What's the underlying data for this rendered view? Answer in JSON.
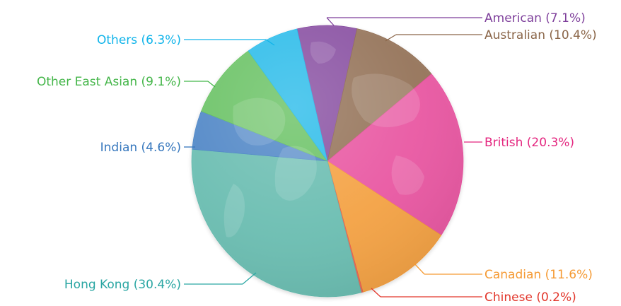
{
  "chart_data": {
    "type": "pie",
    "title": "",
    "slices": [
      {
        "label": "American (7.1%)",
        "value": 7.1,
        "color": "#7e3f9b"
      },
      {
        "label": "Australian (10.4%)",
        "value": 10.4,
        "color": "#8b6649"
      },
      {
        "label": "British (20.3%)",
        "value": 20.3,
        "color": "#e9489b"
      },
      {
        "label": "Canadian (11.6%)",
        "value": 11.6,
        "color": "#f59a33"
      },
      {
        "label": "Chinese (0.2%)",
        "value": 0.2,
        "color": "#e85b4a"
      },
      {
        "label": "Hong Kong (30.4%)",
        "value": 30.4,
        "color": "#5cb8ab"
      },
      {
        "label": "Indian (4.6%)",
        "value": 4.6,
        "color": "#3f7cc3"
      },
      {
        "label": "Other East Asian (9.1%)",
        "value": 9.1,
        "color": "#5cbe55"
      },
      {
        "label": "Others (6.3%)",
        "value": 6.3,
        "color": "#17b7ea"
      }
    ],
    "label_text_colors": [
      "#7e3f9b",
      "#8b6649",
      "#e4267f",
      "#f59a33",
      "#e2362b",
      "#2aa6a3",
      "#3677bd",
      "#45b64a",
      "#11b4ea"
    ]
  }
}
